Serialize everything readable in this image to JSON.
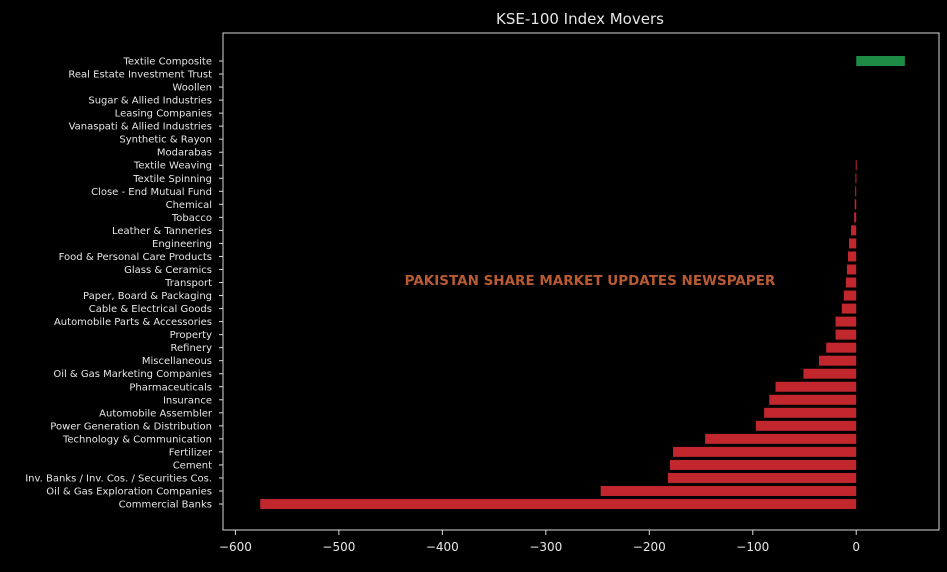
{
  "chart_data": {
    "type": "bar",
    "orientation": "horizontal",
    "title": "KSE-100 Index Movers",
    "watermark": "PAKISTAN SHARE MARKET UPDATES NEWSPAPER",
    "xlabel": "",
    "ylabel": "",
    "xlim": [
      -612,
      80
    ],
    "x_ticks": [
      -600,
      -500,
      -400,
      -300,
      -200,
      -100,
      0
    ],
    "x_tick_labels": [
      "−600",
      "−500",
      "−400",
      "−300",
      "−200",
      "−100",
      "0"
    ],
    "grid": false,
    "colors": {
      "background": "#000000",
      "axes": "#d9d9d9",
      "text": "#e6e6e6",
      "positive": "#1e8c45",
      "negative": "#c1272d",
      "watermark": "#b85a33"
    },
    "categories": [
      "Textile Composite",
      "Real Estate Investment Trust",
      "Woollen",
      "Sugar & Allied Industries",
      "Leasing Companies",
      "Vanaspati & Allied Industries",
      "Synthetic & Rayon",
      "Modarabas",
      "Textile Weaving",
      "Textile Spinning",
      "Close - End Mutual Fund",
      "Chemical",
      "Tobacco",
      "Leather & Tanneries",
      "Engineering",
      "Food & Personal Care Products",
      "Glass & Ceramics",
      "Transport",
      "Paper, Board & Packaging",
      "Cable & Electrical Goods",
      "Automobile Parts & Accessories",
      "Property",
      "Refinery",
      "Miscellaneous",
      "Oil & Gas Marketing Companies",
      "Pharmaceuticals",
      "Insurance",
      "Automobile Assembler",
      "Power Generation & Distribution",
      "Technology & Communication",
      "Fertilizer",
      "Cement",
      "Inv. Banks / Inv. Cos. / Securities Cos.",
      "Oil & Gas Exploration Companies",
      "Commercial Banks"
    ],
    "values": [
      47,
      0,
      0,
      0,
      0,
      0,
      0,
      0,
      -0.5,
      -0.8,
      -1,
      -1.5,
      -2,
      -5,
      -7,
      -8,
      -9,
      -10,
      -12,
      -14,
      -20,
      -20,
      -29,
      -36,
      -51,
      -78,
      -84,
      -89,
      -97,
      -146,
      -177,
      -180,
      -182,
      -247,
      -576
    ]
  }
}
